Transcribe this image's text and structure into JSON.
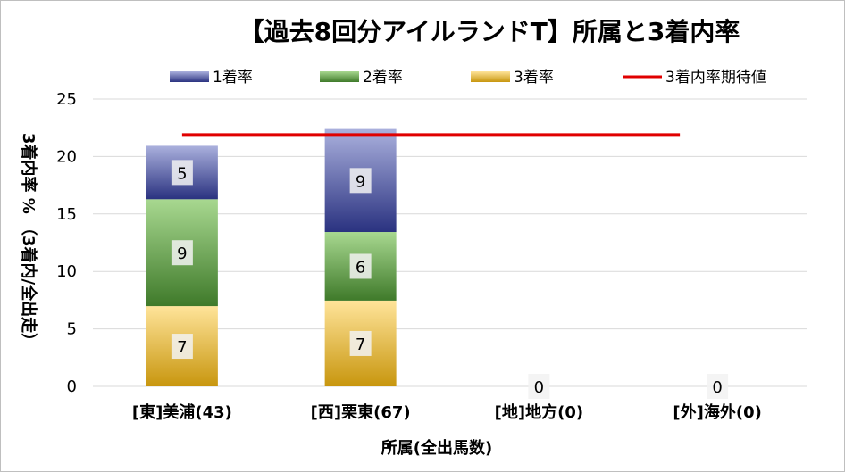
{
  "chart_data": {
    "type": "bar",
    "stacked": true,
    "title": "【過去8回分アイルランドT】所属と3着内率",
    "xlabel": "所属(全出馬数)",
    "ylabel": "3着内率 % （3着内/全出走）",
    "categories": [
      "[東]美浦(43)",
      "[西]栗東(67)",
      "[地]地方(0)",
      "[外]海外(0)"
    ],
    "ylim": [
      0,
      25
    ],
    "yticks": [
      0,
      5,
      10,
      15,
      20,
      25
    ],
    "series": [
      {
        "name": "3着率",
        "values": [
          6.98,
          7.46,
          0,
          0
        ],
        "labels": [
          "7",
          "7",
          "0",
          "0"
        ],
        "color": "#e8b830"
      },
      {
        "name": "2着率",
        "values": [
          9.3,
          5.97,
          0,
          0
        ],
        "labels": [
          "9",
          "6",
          "",
          ""
        ],
        "color": "#6aa84f"
      },
      {
        "name": "1着率",
        "values": [
          4.65,
          8.96,
          0,
          0
        ],
        "labels": [
          "5",
          "9",
          "",
          ""
        ],
        "color": "#4a56a6"
      }
    ],
    "reference_line": {
      "name": "3着内率期待値",
      "value": 21.9,
      "color": "#e00000"
    },
    "legend": {
      "position": "top",
      "order": [
        "1着率",
        "2着率",
        "3着率",
        "3着内率期待値"
      ]
    },
    "grid": true
  }
}
